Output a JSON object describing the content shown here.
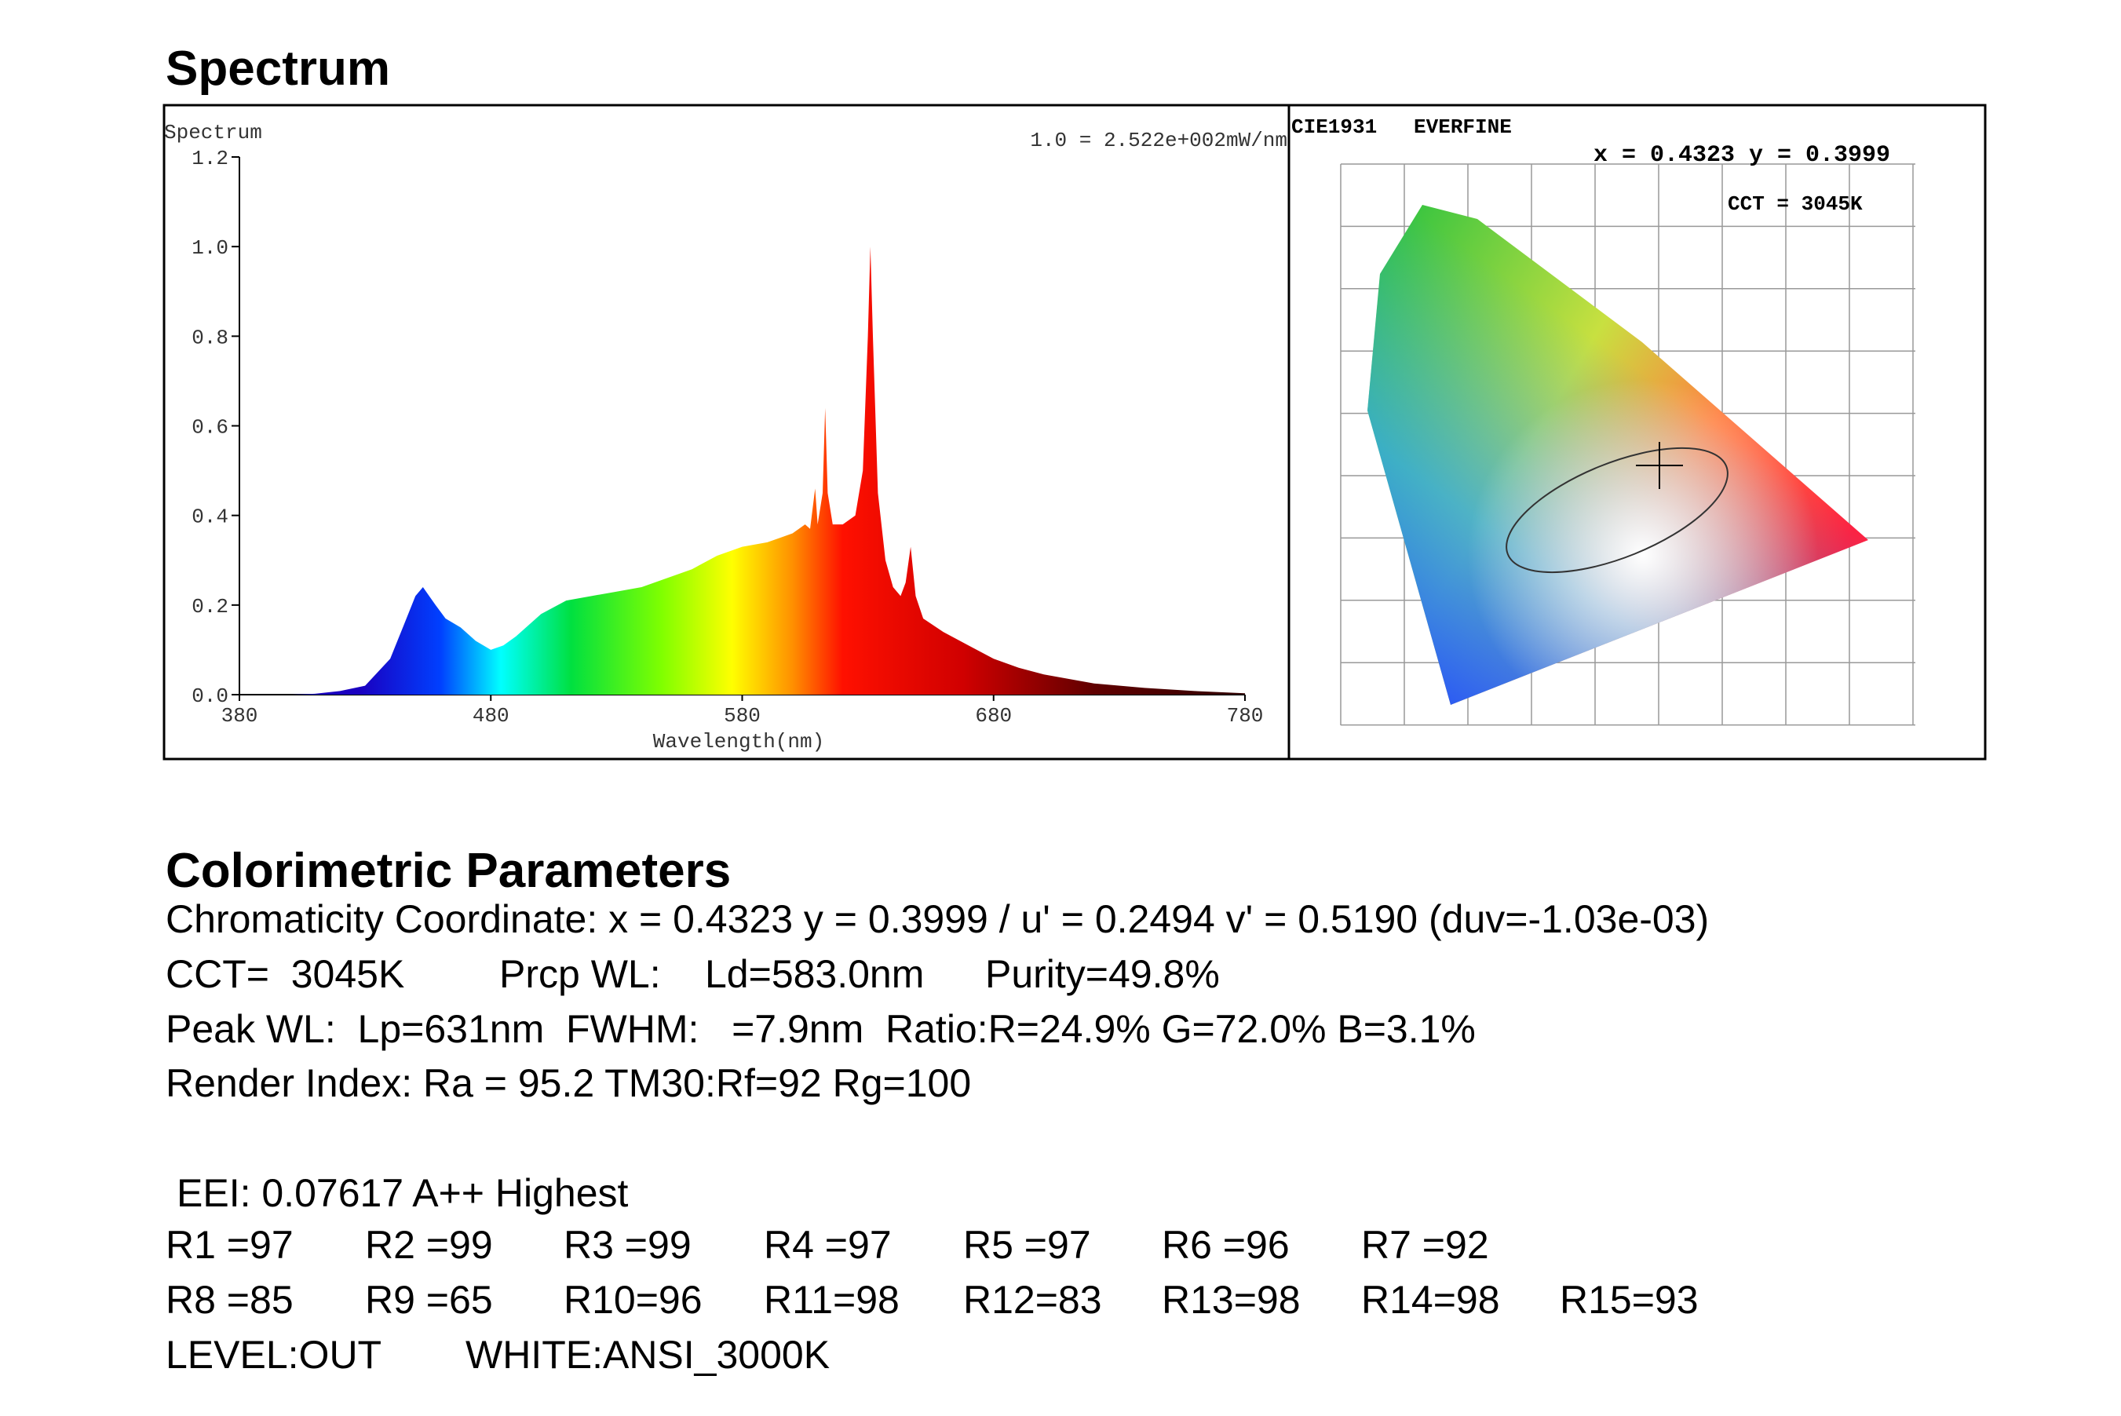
{
  "headings": {
    "spectrum": "Spectrum",
    "colorimetric": "Colorimetric Parameters"
  },
  "chart_data": {
    "type": "area",
    "ylabel": "Spectrum",
    "annotation": "1.0 = 2.522e+002mW/nm",
    "xlabel": "Wavelength(nm)",
    "x": [
      380,
      400,
      410,
      420,
      430,
      440,
      445,
      450,
      453,
      458,
      462,
      468,
      474,
      480,
      485,
      490,
      500,
      510,
      520,
      530,
      540,
      550,
      560,
      570,
      580,
      590,
      595,
      600,
      605,
      607,
      609,
      610,
      612,
      613,
      614,
      616,
      620,
      625,
      628,
      630,
      631,
      632,
      634,
      637,
      640,
      643,
      645,
      647,
      649,
      652,
      660,
      670,
      680,
      690,
      700,
      720,
      740,
      760,
      780
    ],
    "values": [
      0,
      0,
      0.002,
      0.008,
      0.02,
      0.08,
      0.15,
      0.22,
      0.24,
      0.2,
      0.17,
      0.15,
      0.12,
      0.1,
      0.11,
      0.13,
      0.18,
      0.21,
      0.22,
      0.23,
      0.24,
      0.26,
      0.28,
      0.31,
      0.33,
      0.34,
      0.35,
      0.36,
      0.38,
      0.37,
      0.46,
      0.38,
      0.45,
      0.64,
      0.45,
      0.38,
      0.38,
      0.4,
      0.5,
      0.8,
      1.0,
      0.8,
      0.45,
      0.3,
      0.24,
      0.22,
      0.25,
      0.33,
      0.22,
      0.17,
      0.14,
      0.11,
      0.08,
      0.06,
      0.045,
      0.025,
      0.015,
      0.008,
      0.003
    ],
    "xlim": [
      380,
      780
    ],
    "xticks": [
      380,
      480,
      580,
      680,
      780
    ],
    "ylim": [
      0,
      1.2
    ],
    "yticks": [
      {
        "value": 0,
        "label": "0.0"
      },
      0.2,
      0.4,
      0.6,
      0.8,
      {
        "value": 1,
        "label": "1.0"
      },
      1.2
    ]
  },
  "cie": {
    "title": "CIE1931   EVERFINE",
    "coords": "x = 0.4323 y = 0.3999",
    "cct": "CCT = 3045K"
  },
  "params": {
    "line1": "Chromaticity Coordinate: x = 0.4323 y = 0.3999 / u' = 0.2494 v' = 0.5190 (duv=-1.03e-03)",
    "line2": [
      "CCT=  3045K",
      "Prcp WL:",
      "Ld=583.0nm",
      "Purity=49.8%"
    ],
    "line3": "Peak WL:  Lp=631nm  FWHM:   =7.9nm  Ratio:R=24.9% G=72.0% B=3.1%",
    "line4": "Render Index: Ra = 95.2 TM30:Rf=92 Rg=100",
    "eei": "EEI: 0.07617 A++ Highest",
    "r_rows": [
      [
        "R1 =97",
        "R2 =99",
        "R3 =99",
        "R4 =97",
        "R5 =97",
        "R6 =96",
        "R7 =92"
      ],
      [
        "R8 =85",
        "R9 =65",
        "R10=96",
        "R11=98",
        "R12=83",
        "R13=98",
        "R14=98",
        "R15=93"
      ]
    ],
    "level": [
      "LEVEL:OUT",
      "WHITE:ANSI_3000K"
    ]
  }
}
